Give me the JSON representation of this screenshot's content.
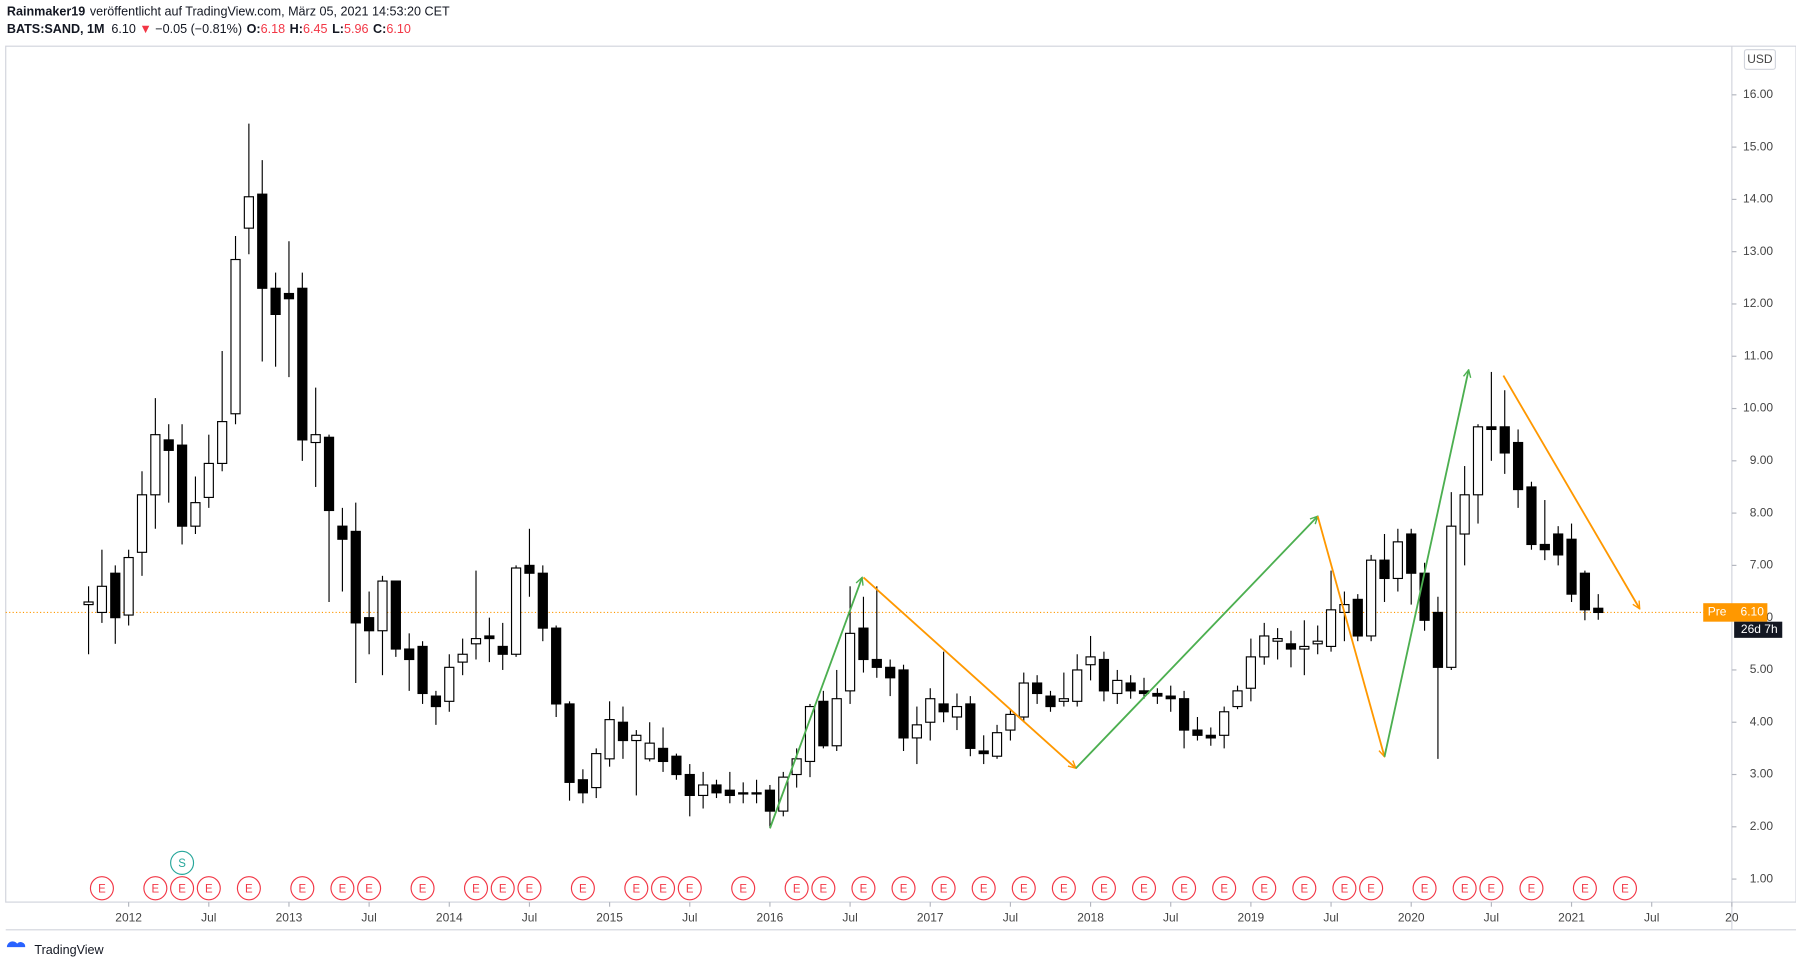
{
  "header": {
    "author": "Rainmaker19",
    "published": "veröffentlicht auf TradingView.com, März 05, 2021 14:53:20 CET",
    "symbol": "BATS:SAND, 1M",
    "last": "6.10",
    "arrow": "▼",
    "change": "−0.05 (−0.81%)",
    "ohlc": [
      {
        "label": "O:",
        "value": "6.18"
      },
      {
        "label": "H:",
        "value": "6.45"
      },
      {
        "label": "L:",
        "value": "5.96"
      },
      {
        "label": "C:",
        "value": "6.10"
      }
    ]
  },
  "footer": {
    "brand": "TradingView"
  },
  "chart_data": {
    "type": "candlestick",
    "currency": "USD",
    "up_color": "#ffffff",
    "down_color": "#000000",
    "wick_color": "#000000",
    "x": [
      -3,
      -2,
      -1,
      0,
      1,
      2,
      3,
      4,
      5,
      6,
      7,
      8,
      9,
      10,
      11,
      12,
      13,
      14,
      15,
      16,
      17,
      18,
      19,
      20,
      21,
      22,
      23,
      24,
      25,
      26,
      27,
      28,
      29,
      30,
      31,
      32,
      33,
      34,
      35,
      36,
      37,
      38,
      39,
      40,
      41,
      42,
      43,
      44,
      45,
      46,
      47,
      48,
      49,
      50,
      51,
      52,
      53,
      54,
      55,
      56,
      57,
      58,
      59,
      60,
      61,
      62,
      63,
      64,
      65,
      66,
      67,
      68,
      69,
      70,
      71,
      72,
      73,
      74,
      75,
      76,
      77,
      78,
      79,
      80,
      81,
      82,
      83,
      84,
      85,
      86,
      87,
      88,
      89,
      90,
      91,
      92,
      93,
      94,
      95,
      96,
      97,
      98,
      99,
      100,
      101,
      102,
      103,
      104,
      105,
      106,
      107,
      108,
      109,
      110
    ],
    "open": [
      6.25,
      6.1,
      6.85,
      6.05,
      7.25,
      8.35,
      9.4,
      9.3,
      7.75,
      8.3,
      8.95,
      9.9,
      13.45,
      14.1,
      12.3,
      12.2,
      12.3,
      9.35,
      9.45,
      7.75,
      7.65,
      6.0,
      5.75,
      6.7,
      5.4,
      5.45,
      4.5,
      4.4,
      5.15,
      5.5,
      5.65,
      5.45,
      5.3,
      7.0,
      6.85,
      5.8,
      4.35,
      2.9,
      2.75,
      3.3,
      4.0,
      3.65,
      3.3,
      3.5,
      3.35,
      3.0,
      2.6,
      2.8,
      2.7,
      2.65,
      2.65,
      2.7,
      2.3,
      3.0,
      3.25,
      4.4,
      3.55,
      4.6,
      5.8,
      5.2,
      5.05,
      5.0,
      3.7,
      4.0,
      4.35,
      4.1,
      4.35,
      3.45,
      3.35,
      3.85,
      4.1,
      4.75,
      4.5,
      4.4,
      4.4,
      5.1,
      5.2,
      4.55,
      4.75,
      4.6,
      4.55,
      4.5,
      4.45,
      3.85,
      3.75,
      3.75,
      4.3,
      4.65,
      5.25,
      5.55,
      5.5,
      5.4,
      5.5,
      5.45,
      6.1,
      6.35,
      5.65,
      7.1,
      6.75,
      7.6,
      6.85,
      6.1,
      5.05,
      7.6,
      8.35,
      9.65,
      9.65,
      9.35,
      8.5,
      7.4,
      7.6,
      7.5,
      6.85,
      6.18
    ],
    "high": [
      6.6,
      7.3,
      7.0,
      7.3,
      8.8,
      10.2,
      9.7,
      9.7,
      8.7,
      9.5,
      11.1,
      13.3,
      15.45,
      14.75,
      12.6,
      13.2,
      12.6,
      10.4,
      9.5,
      8.1,
      8.2,
      6.5,
      6.8,
      6.7,
      5.7,
      5.55,
      4.6,
      5.3,
      5.6,
      6.9,
      6.0,
      5.9,
      7.0,
      7.7,
      7.0,
      5.85,
      4.4,
      3.1,
      3.5,
      4.4,
      4.3,
      3.85,
      4.0,
      3.9,
      3.4,
      3.2,
      3.05,
      2.9,
      3.05,
      2.85,
      2.9,
      2.8,
      3.05,
      3.5,
      4.35,
      4.6,
      5.0,
      6.6,
      6.4,
      6.6,
      5.2,
      5.1,
      4.3,
      4.65,
      5.35,
      4.55,
      4.5,
      3.75,
      3.95,
      4.25,
      4.95,
      4.9,
      4.6,
      4.95,
      5.3,
      5.65,
      5.35,
      5.0,
      4.9,
      4.85,
      4.65,
      4.7,
      4.6,
      4.1,
      3.9,
      4.3,
      4.7,
      5.6,
      5.9,
      5.8,
      5.75,
      5.95,
      5.85,
      6.9,
      6.5,
      6.45,
      7.2,
      7.6,
      7.7,
      7.7,
      7.05,
      6.4,
      8.4,
      8.9,
      9.7,
      10.7,
      10.35,
      9.6,
      8.6,
      8.25,
      7.75,
      7.8,
      6.9,
      6.45
    ],
    "low": [
      5.3,
      5.9,
      5.5,
      5.85,
      6.8,
      7.7,
      8.2,
      7.4,
      7.6,
      8.1,
      8.8,
      9.7,
      12.95,
      10.9,
      10.8,
      10.6,
      9.0,
      8.5,
      6.3,
      6.5,
      4.75,
      5.3,
      4.9,
      5.25,
      4.6,
      4.35,
      3.95,
      4.2,
      4.9,
      5.2,
      5.15,
      5.0,
      5.25,
      6.4,
      5.55,
      4.1,
      2.5,
      2.45,
      2.55,
      3.15,
      3.3,
      2.6,
      3.25,
      3.05,
      2.9,
      2.2,
      2.35,
      2.55,
      2.45,
      2.45,
      2.45,
      2.0,
      2.2,
      2.75,
      2.95,
      3.5,
      3.45,
      4.35,
      4.95,
      4.85,
      4.5,
      3.45,
      3.2,
      3.65,
      4.0,
      3.85,
      3.35,
      3.2,
      3.3,
      3.65,
      4.0,
      4.35,
      4.2,
      4.3,
      4.3,
      4.8,
      4.4,
      4.35,
      4.45,
      4.45,
      4.35,
      4.2,
      3.5,
      3.65,
      3.55,
      3.5,
      4.25,
      4.4,
      5.1,
      5.2,
      5.05,
      4.9,
      5.3,
      5.35,
      5.55,
      5.55,
      5.55,
      6.3,
      6.5,
      6.25,
      5.75,
      3.3,
      5.0,
      7.0,
      7.8,
      9.0,
      8.75,
      8.1,
      7.3,
      7.1,
      7.0,
      6.3,
      5.95,
      5.96
    ],
    "close": [
      6.3,
      6.6,
      6.0,
      7.15,
      8.35,
      9.5,
      9.2,
      7.75,
      8.2,
      8.95,
      9.75,
      12.85,
      14.05,
      12.3,
      11.8,
      12.1,
      9.4,
      9.5,
      8.05,
      7.5,
      5.9,
      5.75,
      6.7,
      5.4,
      5.2,
      4.55,
      4.3,
      5.05,
      5.3,
      5.6,
      5.6,
      5.3,
      6.95,
      6.85,
      5.8,
      4.35,
      2.85,
      2.65,
      3.4,
      4.05,
      3.65,
      3.75,
      3.6,
      3.25,
      3.0,
      2.6,
      2.8,
      2.65,
      2.6,
      2.65,
      2.65,
      2.3,
      2.95,
      3.3,
      4.3,
      3.55,
      4.45,
      5.7,
      5.2,
      5.05,
      4.85,
      3.7,
      3.95,
      4.45,
      4.2,
      4.3,
      3.5,
      3.4,
      3.8,
      4.15,
      4.75,
      4.55,
      4.3,
      4.45,
      5.0,
      5.25,
      4.6,
      4.8,
      4.6,
      4.55,
      4.5,
      4.45,
      3.85,
      3.75,
      3.7,
      4.2,
      4.6,
      5.25,
      5.65,
      5.6,
      5.4,
      5.45,
      5.55,
      6.15,
      6.25,
      5.65,
      7.1,
      6.75,
      7.45,
      6.85,
      5.95,
      5.05,
      7.75,
      8.35,
      9.65,
      9.6,
      9.15,
      8.45,
      7.4,
      7.3,
      7.2,
      6.45,
      6.15,
      6.1
    ],
    "xlim": [
      -9.2,
      120
    ],
    "xticks": [
      {
        "value": 0,
        "label": "2012"
      },
      {
        "value": 6,
        "label": "Jul"
      },
      {
        "value": 12,
        "label": "2013"
      },
      {
        "value": 18,
        "label": "Jul"
      },
      {
        "value": 24,
        "label": "2014"
      },
      {
        "value": 30,
        "label": "Jul"
      },
      {
        "value": 36,
        "label": "2015"
      },
      {
        "value": 42,
        "label": "Jul"
      },
      {
        "value": 48,
        "label": "2016"
      },
      {
        "value": 54,
        "label": "Jul"
      },
      {
        "value": 60,
        "label": "2017"
      },
      {
        "value": 66,
        "label": "Jul"
      },
      {
        "value": 72,
        "label": "2018"
      },
      {
        "value": 78,
        "label": "Jul"
      },
      {
        "value": 84,
        "label": "2019"
      },
      {
        "value": 90,
        "label": "Jul"
      },
      {
        "value": 96,
        "label": "2020"
      },
      {
        "value": 102,
        "label": "Jul"
      },
      {
        "value": 108,
        "label": "2021"
      },
      {
        "value": 114,
        "label": "Jul"
      },
      {
        "value": 120,
        "label": "20"
      }
    ],
    "ylim": [
      0.56,
      16.93
    ],
    "yticks": [
      {
        "value": 1,
        "label": "1.00"
      },
      {
        "value": 2,
        "label": "2.00"
      },
      {
        "value": 3,
        "label": "3.00"
      },
      {
        "value": 4,
        "label": "4.00"
      },
      {
        "value": 5,
        "label": "5.00"
      },
      {
        "value": 6,
        "label": "6.00"
      },
      {
        "value": 7,
        "label": "7.00"
      },
      {
        "value": 8,
        "label": "8.00"
      },
      {
        "value": 9,
        "label": "9.00"
      },
      {
        "value": 10,
        "label": "10.00"
      },
      {
        "value": 11,
        "label": "11.00"
      },
      {
        "value": 12,
        "label": "12.00"
      },
      {
        "value": 13,
        "label": "13.00"
      },
      {
        "value": 14,
        "label": "14.00"
      },
      {
        "value": 15,
        "label": "15.00"
      },
      {
        "value": 16,
        "label": "16.00"
      }
    ],
    "price_line": {
      "value": 6.1,
      "label": "6.10",
      "tag": "Pre",
      "countdown": "26d 7h",
      "color": "#ff9800"
    },
    "arrows": [
      {
        "color": "#4caf50",
        "x": [
          48,
          54.9
        ],
        "y": [
          1.97,
          6.77
        ]
      },
      {
        "color": "#ff9800",
        "x": [
          55,
          70.9
        ],
        "y": [
          6.77,
          3.12
        ]
      },
      {
        "color": "#4caf50",
        "x": [
          70.9,
          89
        ],
        "y": [
          3.12,
          7.94
        ]
      },
      {
        "color": "#ff9800",
        "x": [
          89,
          94
        ],
        "y": [
          7.94,
          3.34
        ]
      },
      {
        "color": "#4caf50",
        "x": [
          94,
          100.3
        ],
        "y": [
          3.34,
          10.74
        ]
      },
      {
        "color": "#ff9800",
        "x": [
          102.9,
          113.1
        ],
        "y": [
          10.63,
          6.17
        ]
      }
    ],
    "events": {
      "label": "E",
      "color": "#f23645",
      "x": [
        -2,
        2,
        4,
        6,
        9,
        13,
        16,
        18,
        22,
        26,
        28,
        30,
        34,
        38,
        40,
        42,
        46,
        50,
        52,
        55,
        58,
        61,
        64,
        67,
        70,
        73,
        76,
        79,
        82,
        85,
        88,
        91,
        93,
        97,
        100,
        102,
        105,
        109,
        112
      ]
    },
    "splits": {
      "label": "S",
      "color": "#26a69a",
      "x": [
        4
      ]
    }
  }
}
